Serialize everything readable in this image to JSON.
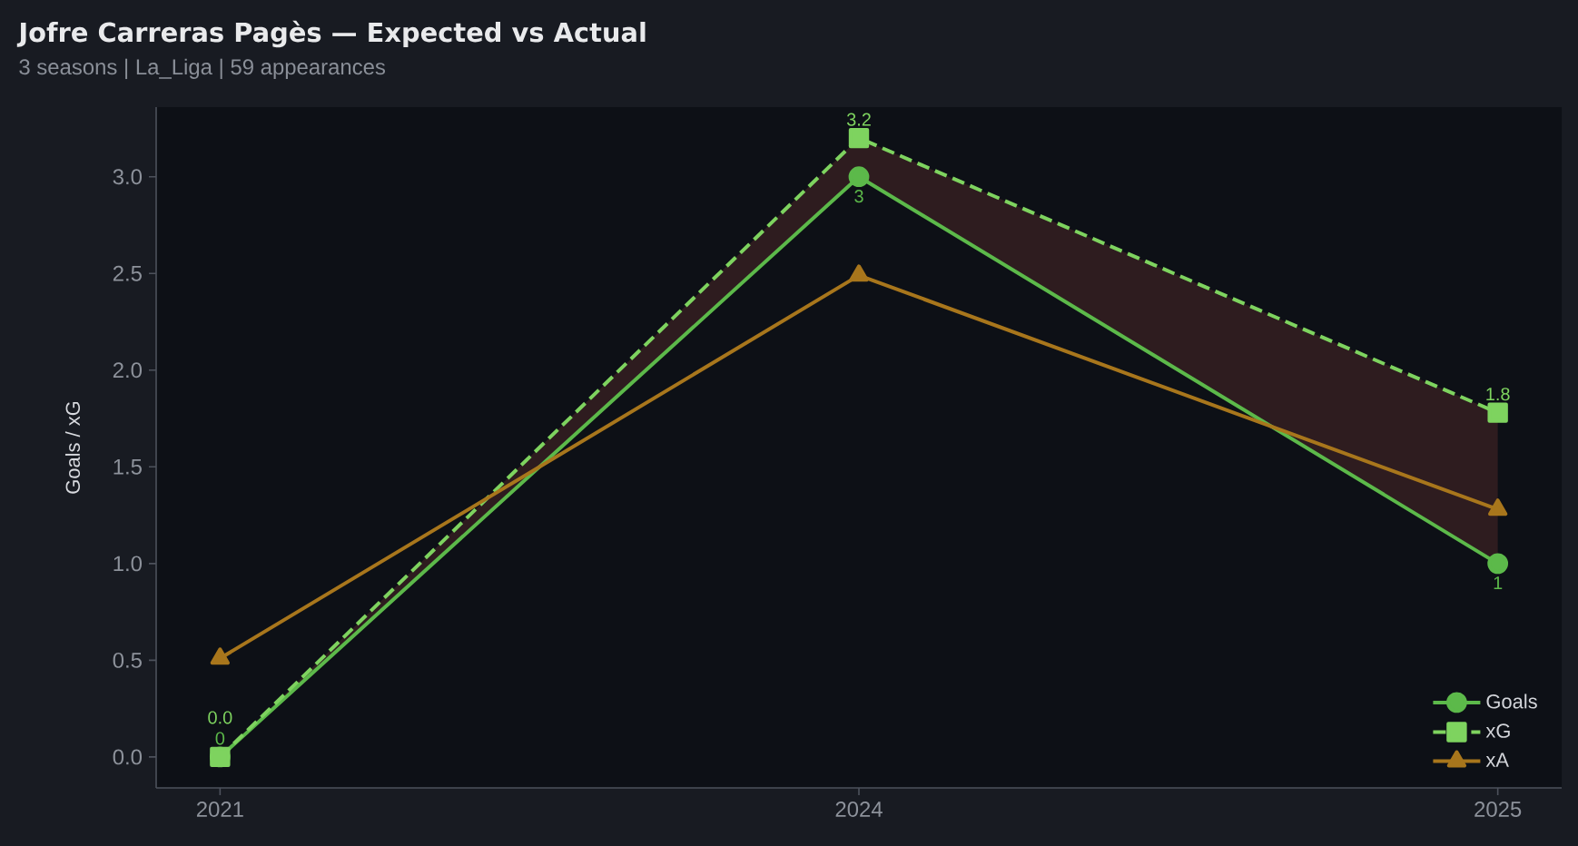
{
  "chart_data": {
    "type": "line",
    "title": "Jofre Carreras Pagès — Expected vs Actual",
    "subtitle": "3 seasons | La_Liga | 59 appearances",
    "ylabel": "Goals / xG",
    "categories": [
      "2021",
      "2024",
      "2025"
    ],
    "series": [
      {
        "name": "Goals",
        "color": "#5cb94a",
        "values": [
          0,
          3,
          1
        ],
        "marker": "circle",
        "line_style": "solid",
        "value_labels": [
          "0",
          "3",
          "1"
        ]
      },
      {
        "name": "xG",
        "color": "#7ed35f",
        "values": [
          0,
          3.2,
          1.78
        ],
        "marker": "square",
        "line_style": "dashed",
        "value_labels": [
          "0.0",
          "3.2",
          "1.8"
        ],
        "lower": [
          0,
          3,
          1
        ],
        "upper": [
          0,
          3.2,
          1.78
        ]
      },
      {
        "name": "xA",
        "color": "#a8761c",
        "values": [
          0.51,
          2.49,
          1.28
        ],
        "marker": "triangle",
        "line_style": "solid"
      }
    ],
    "ylim": [
      -0.16,
      3.36
    ],
    "yticks": [
      {
        "value": 0,
        "label": "0.0"
      },
      {
        "value": 0.5,
        "label": "0.5"
      },
      {
        "value": 1,
        "label": "1.0"
      },
      {
        "value": 1.5,
        "label": "1.5"
      },
      {
        "value": 2,
        "label": "2.0"
      },
      {
        "value": 2.5,
        "label": "2.5"
      },
      {
        "value": 3,
        "label": "3.0"
      }
    ],
    "legend": "bottom right"
  }
}
